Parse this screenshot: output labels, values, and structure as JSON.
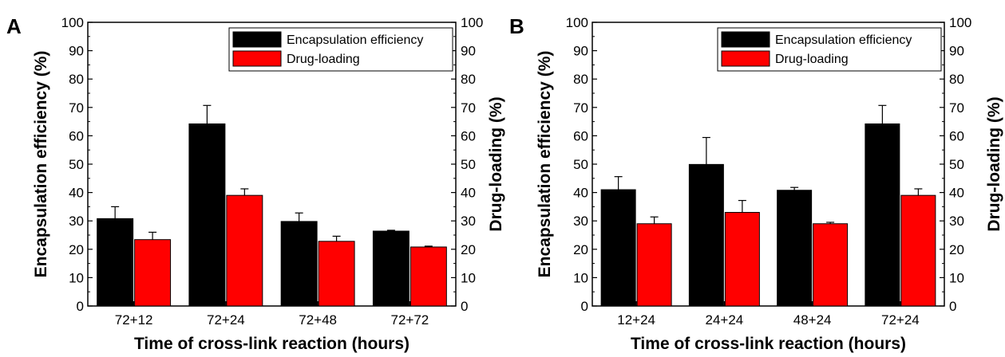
{
  "chart_data": [
    {
      "type": "bar",
      "panel_label": "A",
      "categories": [
        "72+12",
        "72+24",
        "72+48",
        "72+72"
      ],
      "series": [
        {
          "name": "Encapsulation efficiency",
          "values": [
            30.8,
            64.2,
            29.8,
            26.4
          ],
          "errors": [
            4.2,
            6.5,
            3.0,
            0.3
          ],
          "color": "#000000"
        },
        {
          "name": "Drug-loading",
          "values": [
            23.4,
            39.0,
            22.8,
            20.8
          ],
          "errors": [
            2.6,
            2.3,
            1.8,
            0.3
          ],
          "color": "#ff0000"
        }
      ],
      "xlabel": "Time of cross-link reaction (hours)",
      "ylabel": "Encapsulation efficiency (%)",
      "y2label": "Drug-loading (%)",
      "ylim": [
        0,
        100
      ],
      "y2lim": [
        0,
        100
      ],
      "yticks": [
        0,
        10,
        20,
        30,
        40,
        50,
        60,
        70,
        80,
        90,
        100
      ],
      "legend_position": "top-right",
      "grid": false
    },
    {
      "type": "bar",
      "panel_label": "B",
      "categories": [
        "12+24",
        "24+24",
        "48+24",
        "72+24"
      ],
      "series": [
        {
          "name": "Encapsulation efficiency",
          "values": [
            41.0,
            49.9,
            40.8,
            64.2
          ],
          "errors": [
            4.6,
            9.5,
            1.0,
            6.5
          ],
          "color": "#000000"
        },
        {
          "name": "Drug-loading",
          "values": [
            29.0,
            33.0,
            29.0,
            39.0
          ],
          "errors": [
            2.4,
            4.2,
            0.5,
            2.3
          ],
          "color": "#ff0000"
        }
      ],
      "xlabel": "Time of cross-link reaction (hours)",
      "ylabel": "Encapsulation efficiency (%)",
      "y2label": "Drug-loading (%)",
      "ylim": [
        0,
        100
      ],
      "y2lim": [
        0,
        100
      ],
      "yticks": [
        0,
        10,
        20,
        30,
        40,
        50,
        60,
        70,
        80,
        90,
        100
      ],
      "legend_position": "top-right",
      "grid": false
    }
  ]
}
